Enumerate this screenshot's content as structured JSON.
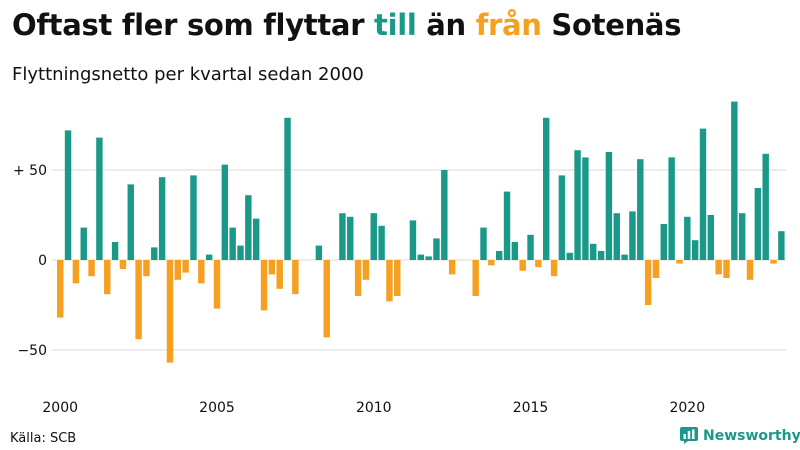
{
  "title": {
    "part1": "Oftast fler som flyttar ",
    "pos_word": "till",
    "part2": " än ",
    "neg_word": "från",
    "part3": " Sotenäs"
  },
  "subtitle": "Flyttningsnetto per kvartal sedan 2000",
  "source": "Källa: SCB",
  "brand": {
    "name": "Newsworthy",
    "icon": "bar-chart-icon"
  },
  "colors": {
    "positive": "#1a9989",
    "negative": "#f5a020",
    "grid": "#d9d9d9",
    "axis_text": "#111111"
  },
  "chart_data": {
    "type": "bar",
    "title": "",
    "xlabel": "",
    "ylabel": "",
    "ylim": [
      -75,
      90
    ],
    "yticks": [
      {
        "value": 50,
        "label": "+ 50"
      },
      {
        "value": 0,
        "label": "0"
      },
      {
        "value": -50,
        "label": "−50"
      }
    ],
    "xticks": [
      {
        "value": 2000,
        "label": "2000"
      },
      {
        "value": 2005,
        "label": "2005"
      },
      {
        "value": 2010,
        "label": "2010"
      },
      {
        "value": 2015,
        "label": "2015"
      },
      {
        "value": 2020,
        "label": "2020"
      }
    ],
    "x_start_year": 2000,
    "periods_per_year": 4,
    "grid": true,
    "values": [
      -32,
      72,
      -13,
      18,
      -9,
      68,
      -19,
      10,
      -5,
      42,
      -44,
      -9,
      7,
      46,
      -57,
      -11,
      -7,
      47,
      -13,
      3,
      -27,
      53,
      18,
      8,
      36,
      23,
      -28,
      -8,
      -16,
      79,
      -19,
      0,
      0,
      8,
      -43,
      0,
      26,
      24,
      -20,
      -11,
      26,
      19,
      -23,
      -20,
      0,
      22,
      3,
      2,
      12,
      50,
      -8,
      0,
      0,
      -20,
      18,
      -3,
      5,
      38,
      10,
      -6,
      14,
      -4,
      79,
      -9,
      47,
      4,
      61,
      57,
      9,
      5,
      60,
      26,
      3,
      27,
      56,
      -25,
      -10,
      20,
      57,
      -2,
      24,
      11,
      73,
      25,
      -8,
      -10,
      88,
      26,
      -11,
      40,
      59,
      -2,
      16
    ]
  }
}
